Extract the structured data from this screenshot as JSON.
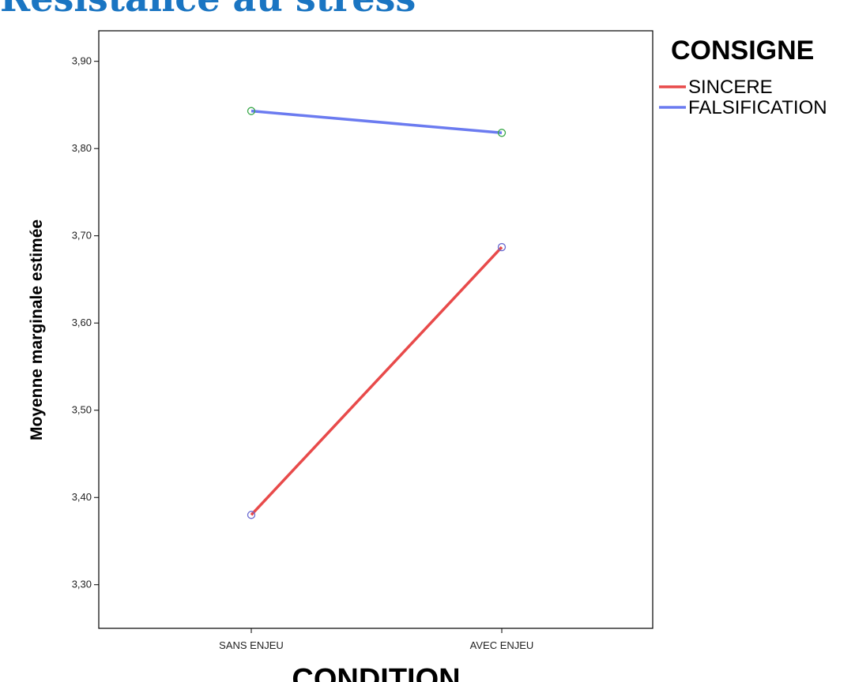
{
  "chart_data": {
    "type": "line",
    "title": "Résistance au stress",
    "xlabel": "CONDITION",
    "ylabel": "Moyenne marginale estimée",
    "categories": [
      "SANS ENJEU",
      "AVEC ENJEU"
    ],
    "ylim": [
      3.25,
      3.935
    ],
    "yticks": [
      "3,30",
      "3,40",
      "3,50",
      "3,60",
      "3,70",
      "3,80",
      "3,90"
    ],
    "ytick_values": [
      3.3,
      3.4,
      3.5,
      3.6,
      3.7,
      3.8,
      3.9
    ],
    "legend_title": "CONSIGNE",
    "legend_position": "top-right",
    "grid": false,
    "series": [
      {
        "name": "SINCERE",
        "color": "#e84a4a",
        "marker_color": "#6a6ad0",
        "values": [
          3.38,
          3.687
        ]
      },
      {
        "name": "FALSIFICATION",
        "color": "#6b7bf0",
        "marker_color": "#3aa84a",
        "values": [
          3.843,
          3.818
        ]
      }
    ]
  }
}
